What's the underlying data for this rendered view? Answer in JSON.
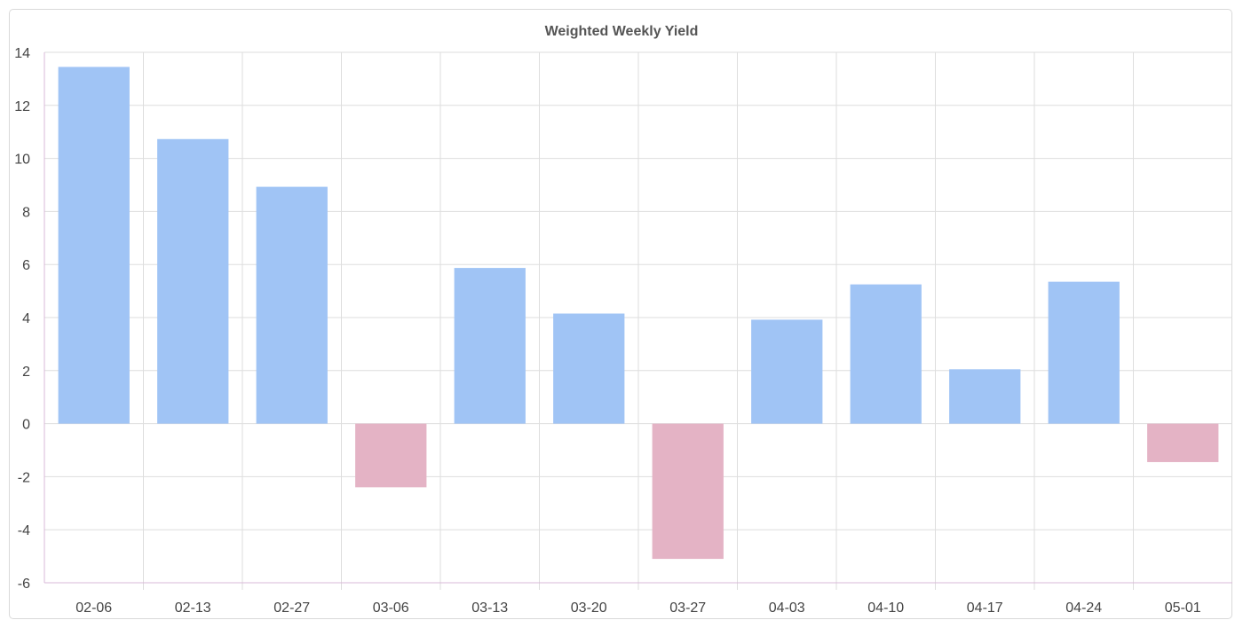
{
  "chart_data": {
    "type": "bar",
    "title": "Weighted Weekly Yield",
    "xlabel": "",
    "ylabel": "",
    "categories": [
      "02-06",
      "02-13",
      "02-27",
      "03-06",
      "03-13",
      "03-20",
      "03-27",
      "04-03",
      "04-10",
      "04-17",
      "04-24",
      "05-01"
    ],
    "values": [
      13.45,
      10.73,
      8.93,
      -2.4,
      5.87,
      4.15,
      -5.1,
      3.92,
      5.25,
      2.05,
      5.35,
      -1.45
    ],
    "ylim": [
      -6,
      14
    ],
    "yticks": [
      14,
      12,
      10,
      8,
      6,
      4,
      2,
      0,
      -2,
      -4,
      -6
    ],
    "grid": true,
    "legend": "none",
    "colors": {
      "positive": "#a0c4f5",
      "negative": "#e4b3c5",
      "grid": "#dedede",
      "axis": "#d9b8d8",
      "title": "#555555",
      "tick": "#444444"
    }
  }
}
